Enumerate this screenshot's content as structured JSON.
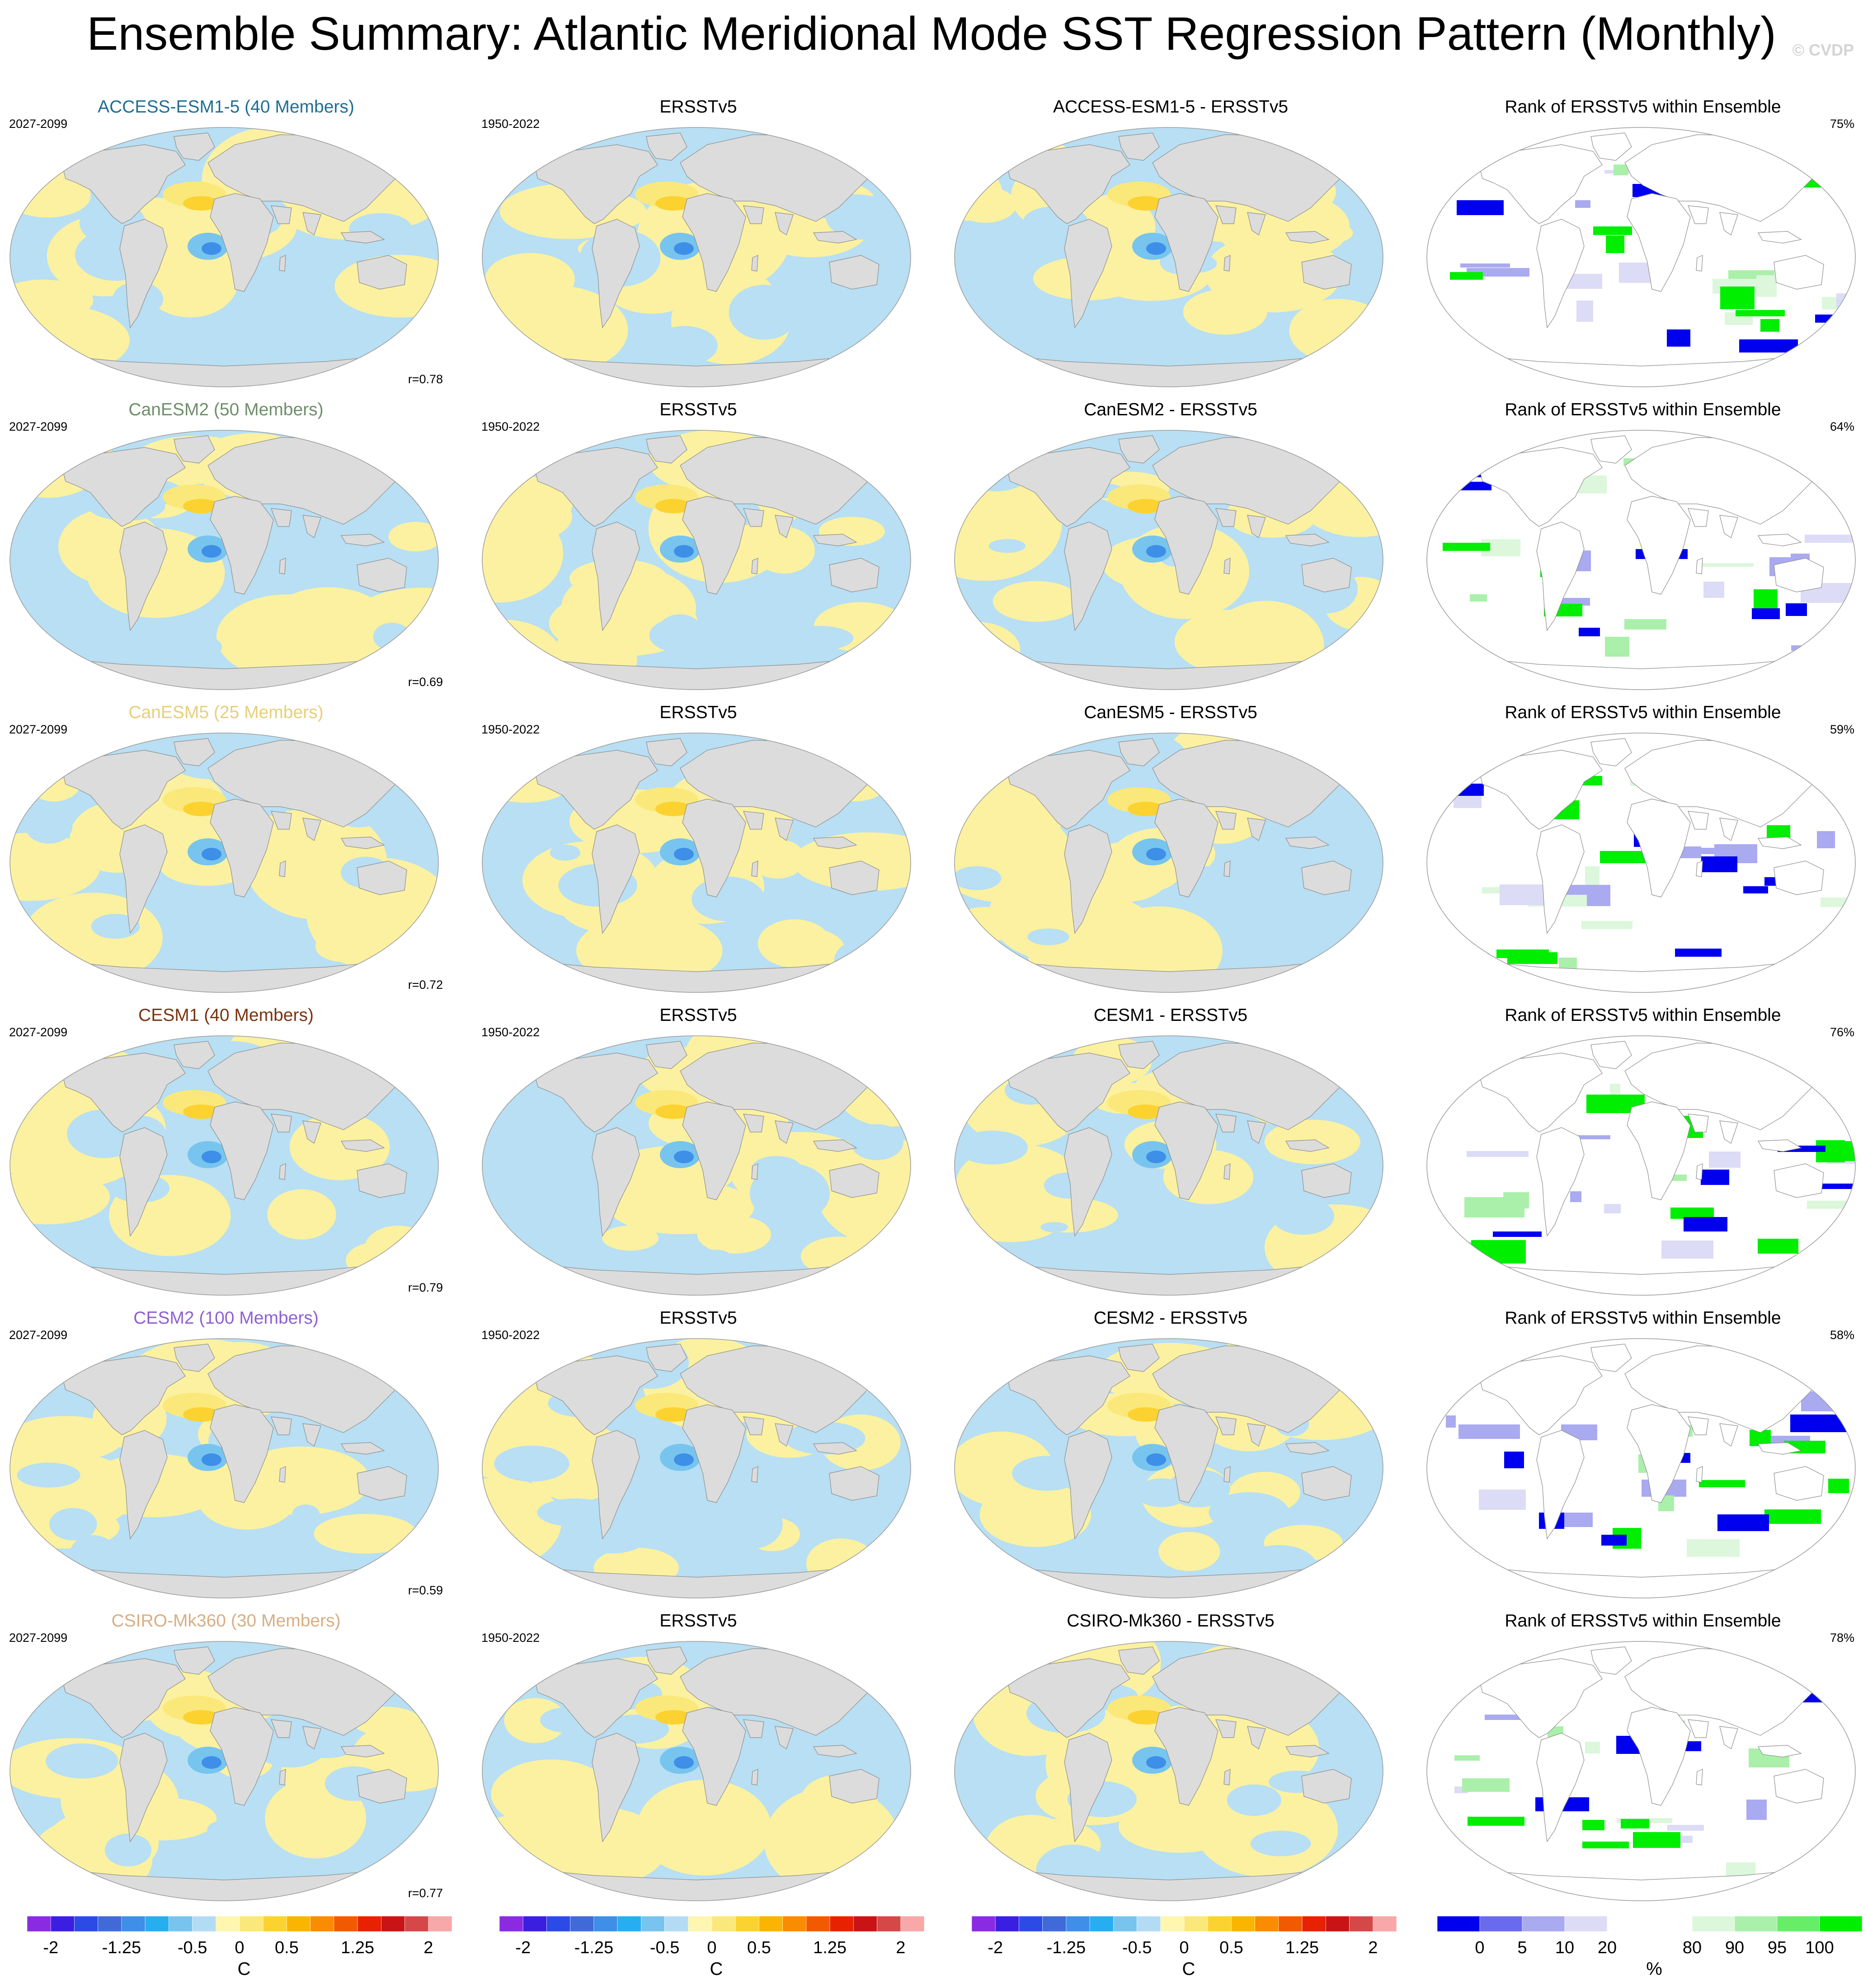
{
  "title": "Ensemble Summary: Atlantic Meridional Mode SST Regression Pattern (Monthly)",
  "watermark": "© CVDP",
  "colors": {
    "land": "#dcdcdc",
    "coast": "#8c8c8c",
    "ocean_neg": "#b8dff3",
    "ocean_pos": "#fbf1a0",
    "rank_low": "#0000ee",
    "rank_high": "#00ee00"
  },
  "rows": [
    {
      "model_title": "ACCESS-ESM1-5 (40 Members)",
      "model_color": "#1f6e94",
      "model_period": "2027-2099",
      "obs_title": "ERSSTv5",
      "obs_period": "1950-2022",
      "diff_title": "ACCESS-ESM1-5 - ERSSTv5",
      "rank_title": "Rank of ERSSTv5 within Ensemble",
      "rank_pct": "75%",
      "r_value": "r=0.78"
    },
    {
      "model_title": "CanESM2 (50 Members)",
      "model_color": "#6e8f6a",
      "model_period": "2027-2099",
      "obs_title": "ERSSTv5",
      "obs_period": "1950-2022",
      "diff_title": "CanESM2 - ERSSTv5",
      "rank_title": "Rank of ERSSTv5 within Ensemble",
      "rank_pct": "64%",
      "r_value": "r=0.69"
    },
    {
      "model_title": "CanESM5 (25 Members)",
      "model_color": "#e6cf7c",
      "model_period": "2027-2099",
      "obs_title": "ERSSTv5",
      "obs_period": "1950-2022",
      "diff_title": "CanESM5 - ERSSTv5",
      "rank_title": "Rank of ERSSTv5 within Ensemble",
      "rank_pct": "59%",
      "r_value": "r=0.72"
    },
    {
      "model_title": "CESM1 (40 Members)",
      "model_color": "#7a3410",
      "model_period": "2027-2099",
      "obs_title": "ERSSTv5",
      "obs_period": "1950-2022",
      "diff_title": "CESM1 - ERSSTv5",
      "rank_title": "Rank of ERSSTv5 within Ensemble",
      "rank_pct": "76%",
      "r_value": "r=0.79"
    },
    {
      "model_title": "CESM2 (100 Members)",
      "model_color": "#8f5fd1",
      "model_period": "2027-2099",
      "obs_title": "ERSSTv5",
      "obs_period": "1950-2022",
      "diff_title": "CESM2 - ERSSTv5",
      "rank_title": "Rank of ERSSTv5 within Ensemble",
      "rank_pct": "58%",
      "r_value": "r=0.59"
    },
    {
      "model_title": "CSIRO-Mk360 (30 Members)",
      "model_color": "#d8ae84",
      "model_period": "2027-2099",
      "obs_title": "ERSSTv5",
      "obs_period": "1950-2022",
      "diff_title": "CSIRO-Mk360 - ERSSTv5",
      "rank_title": "Rank of ERSSTv5 within Ensemble",
      "rank_pct": "78%",
      "r_value": "r=0.77"
    }
  ],
  "sst_colorbar": {
    "colors": [
      "#8a2be2",
      "#3b1fe0",
      "#2b4ae6",
      "#3f6ad8",
      "#3d8fe8",
      "#27aef0",
      "#77c4ef",
      "#b3dcf4",
      "#fff6b0",
      "#fbe87a",
      "#fcd230",
      "#fbb400",
      "#f98c00",
      "#f25a00",
      "#e82200",
      "#c81414",
      "#d44848",
      "#f8a8a8"
    ],
    "tick_labels": [
      "-2",
      "-1.25",
      "-0.5",
      "0",
      "0.5",
      "1.25",
      "2"
    ],
    "tick_positions": [
      1,
      4,
      7,
      9,
      11,
      14,
      17
    ],
    "unit": "C"
  },
  "rank_colorbar": {
    "colors": [
      "#0000ee",
      "#6a6aee",
      "#aaaaf0",
      "#dcdcf6",
      "#ffffff",
      "#ffffff",
      "#dcf7dc",
      "#aaf0aa",
      "#66ee66",
      "#00ee00"
    ],
    "tick_labels": [
      "0",
      "5",
      "10",
      "20",
      "80",
      "90",
      "95",
      "100"
    ],
    "tick_positions": [
      1,
      2,
      3,
      4,
      6,
      7,
      8,
      9
    ],
    "unit": "%"
  }
}
